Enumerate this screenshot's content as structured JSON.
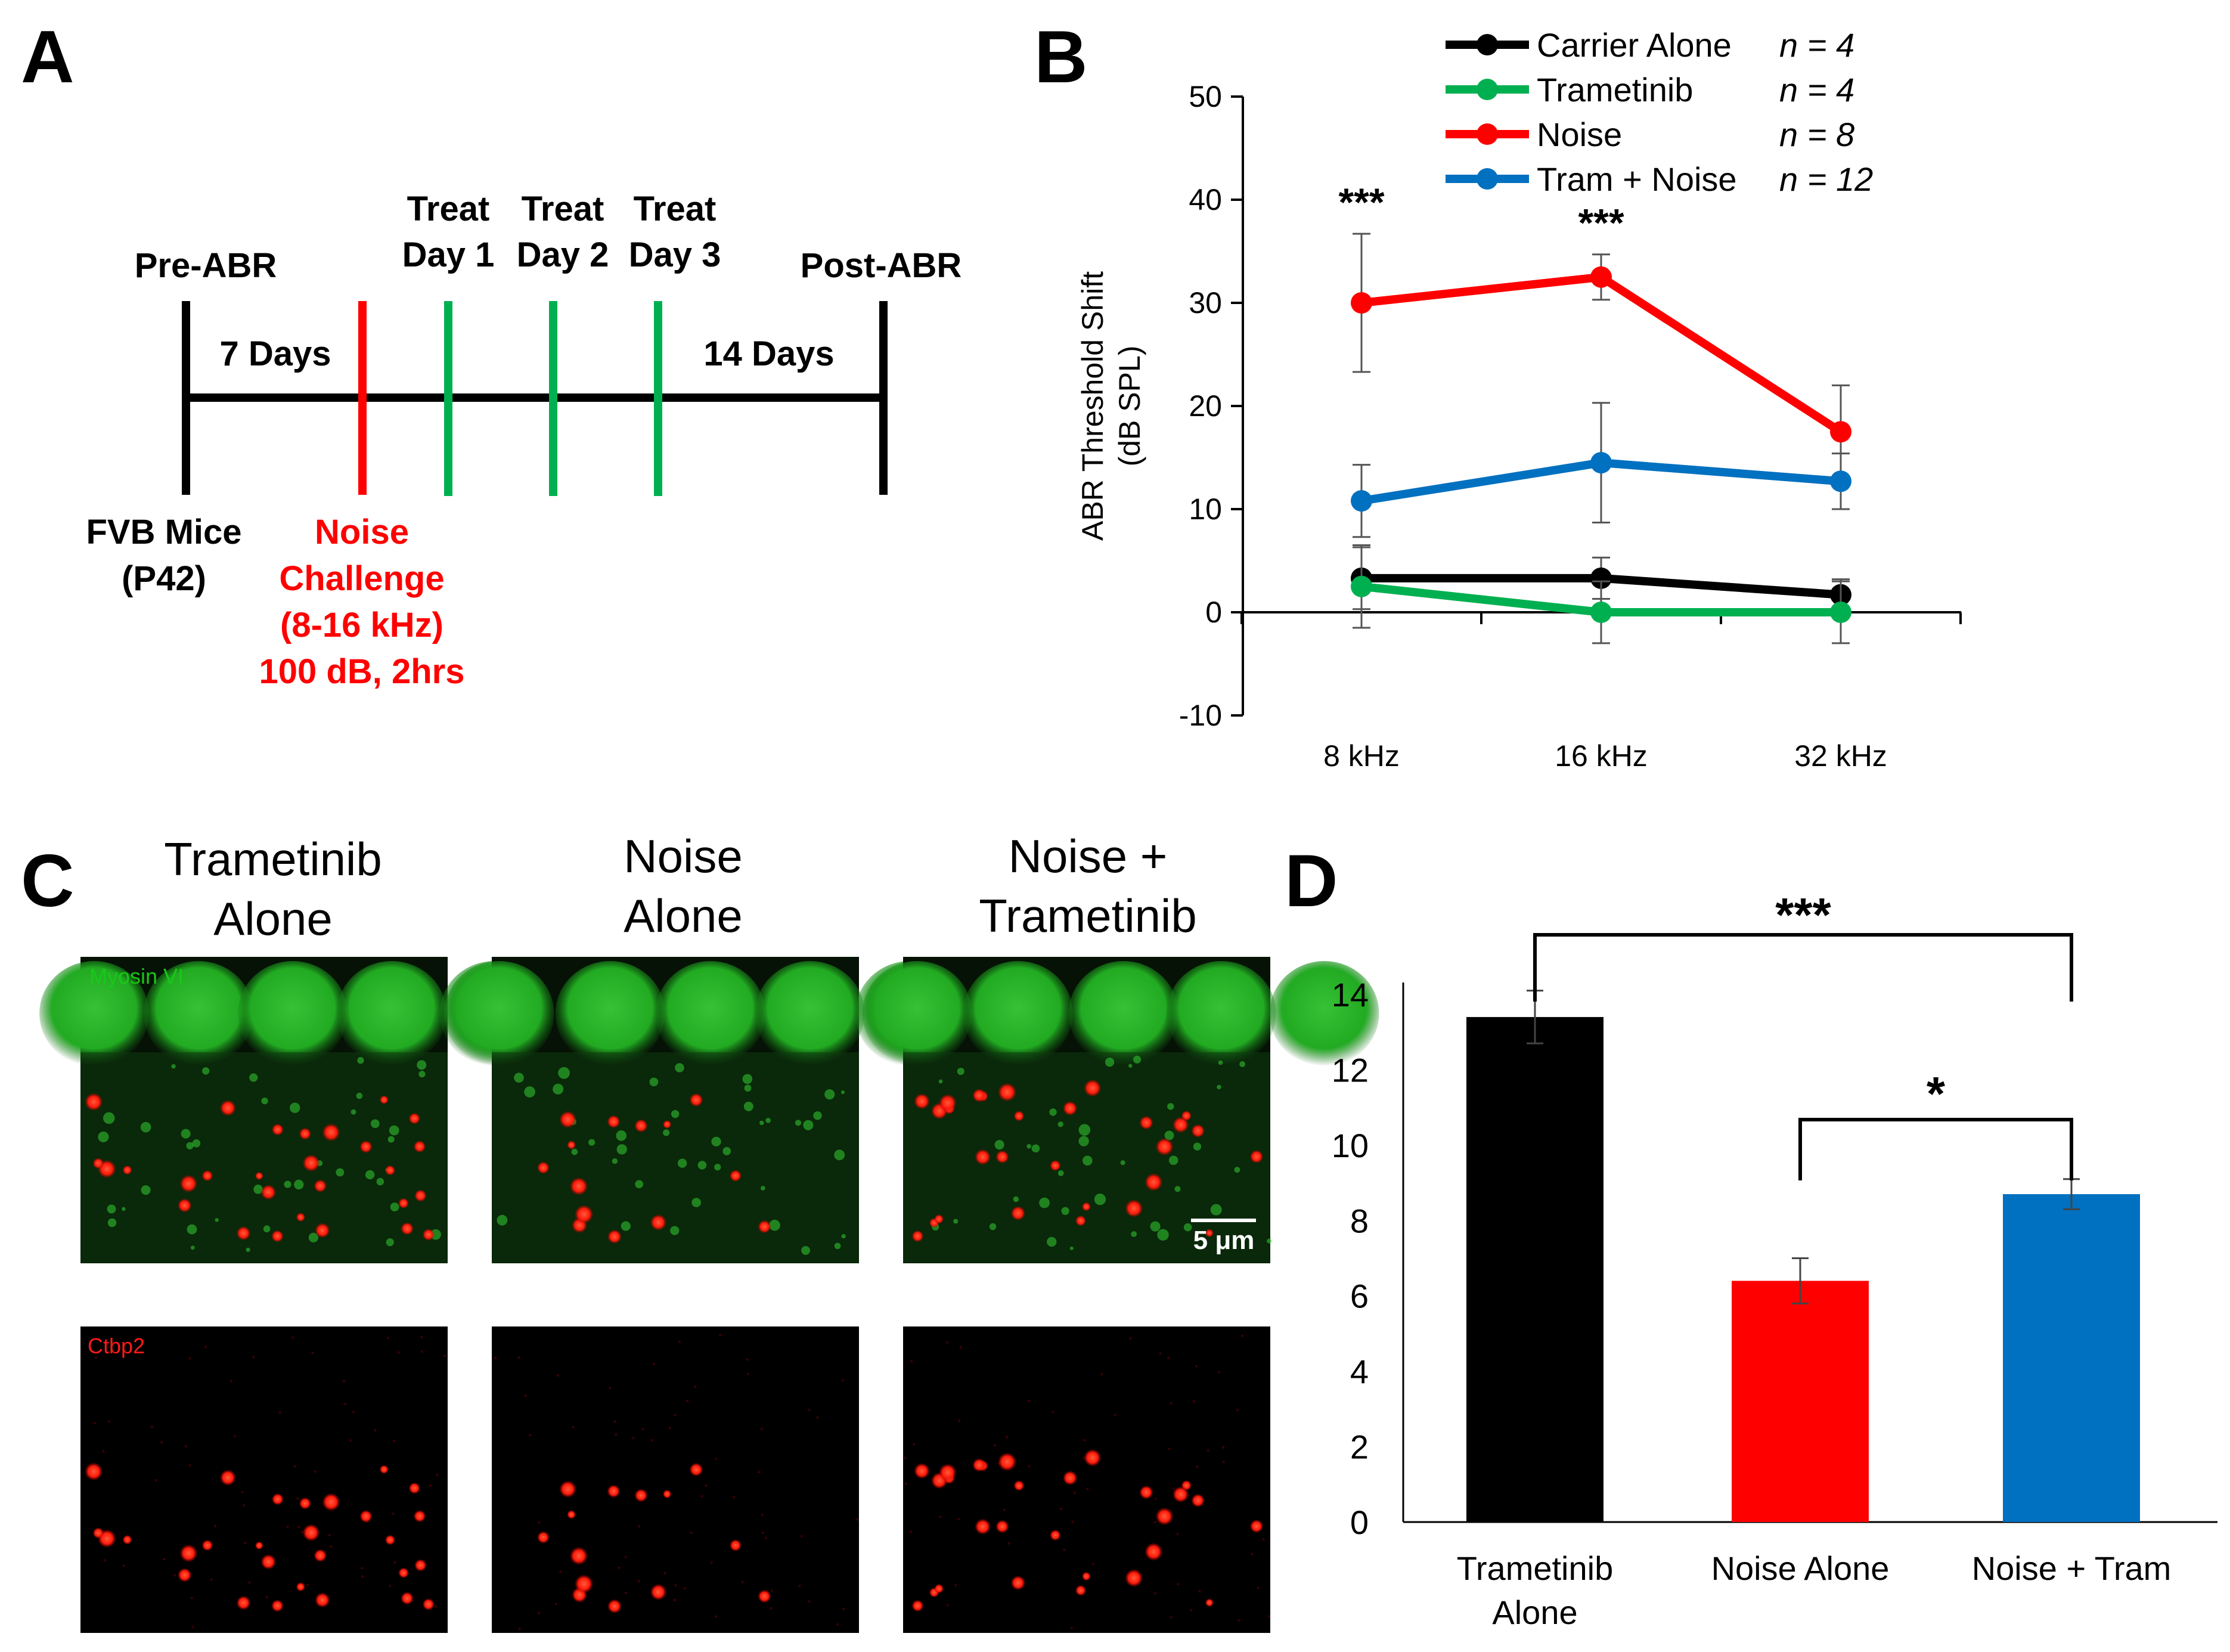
{
  "panels": {
    "A": {
      "letter": "A",
      "pre_abr": "Pre-ABR",
      "post_abr": "Post-ABR",
      "days_before": "7 Days",
      "days_after": "14 Days",
      "treat_days": [
        {
          "line1": "Treat",
          "line2": "Day 1"
        },
        {
          "line1": "Treat",
          "line2": "Day 2"
        },
        {
          "line1": "Treat",
          "line2": "Day 3"
        }
      ],
      "mice": [
        "FVB Mice",
        "(P42)"
      ],
      "noise": [
        "Noise",
        "Challenge",
        "(8-16 kHz)",
        "100 dB, 2hrs"
      ],
      "colors": {
        "timeline": "#000000",
        "noise": "#ff0000",
        "treat": "#00b050"
      }
    },
    "C": {
      "letter": "C",
      "columns": [
        [
          "Trametinib",
          "Alone"
        ],
        [
          "Noise",
          "Alone"
        ],
        [
          "Noise +",
          "Trametinib"
        ]
      ],
      "merged_label": "Myosin VI",
      "ctbp2_label": "Ctbp2",
      "scale_bar": "5 μm"
    }
  },
  "chart_data": [
    {
      "panel": "B",
      "type": "line",
      "title": "",
      "xlabel": "",
      "ylabel_lines": [
        "ABR Threshold Shift",
        "(dB SPL)"
      ],
      "categories": [
        "8 kHz",
        "16 kHz",
        "32 kHz"
      ],
      "ylim": [
        -10,
        50
      ],
      "yticks": [
        -10,
        0,
        10,
        20,
        30,
        40,
        50
      ],
      "legend_position": "top",
      "series": [
        {
          "name": "Carrier Alone",
          "n": "n = 4",
          "color": "#000000",
          "values": [
            3.3,
            3.3,
            1.7
          ],
          "errors": [
            3.0,
            2.0,
            1.5
          ]
        },
        {
          "name": "Trametinib",
          "n": "n = 4",
          "color": "#00b050",
          "values": [
            2.5,
            0,
            0
          ],
          "errors": [
            4.0,
            3.0,
            3.0
          ]
        },
        {
          "name": "Noise",
          "n": "n = 8",
          "color": "#ff0000",
          "values": [
            30,
            32.5,
            17.5
          ],
          "errors": [
            6.7,
            2.2,
            4.5
          ]
        },
        {
          "name": "Tram + Noise",
          "n": "n = 12",
          "color": "#0070c0",
          "values": [
            10.8,
            14.5,
            12.7
          ],
          "errors": [
            3.5,
            5.8,
            2.7
          ]
        }
      ],
      "annotations": [
        {
          "category": "8 kHz",
          "text": "***"
        },
        {
          "category": "16 kHz",
          "text": "***"
        }
      ]
    },
    {
      "panel": "D",
      "type": "bar",
      "title": "",
      "xlabel": "",
      "ylabel": "",
      "categories": [
        [
          "Trametinib",
          "Alone"
        ],
        [
          "Noise Alone"
        ],
        [
          "Noise + Tram"
        ]
      ],
      "values": [
        13.4,
        6.4,
        8.7
      ],
      "errors": [
        0.7,
        0.6,
        0.4
      ],
      "colors": [
        "#000000",
        "#ff0000",
        "#0070c0"
      ],
      "ylim": [
        0,
        14
      ],
      "yticks": [
        0,
        2,
        4,
        6,
        8,
        10,
        12,
        14
      ],
      "significance": [
        {
          "from": 0,
          "to": 2,
          "text": "***"
        },
        {
          "from": 1,
          "to": 2,
          "text": "*"
        }
      ]
    }
  ]
}
